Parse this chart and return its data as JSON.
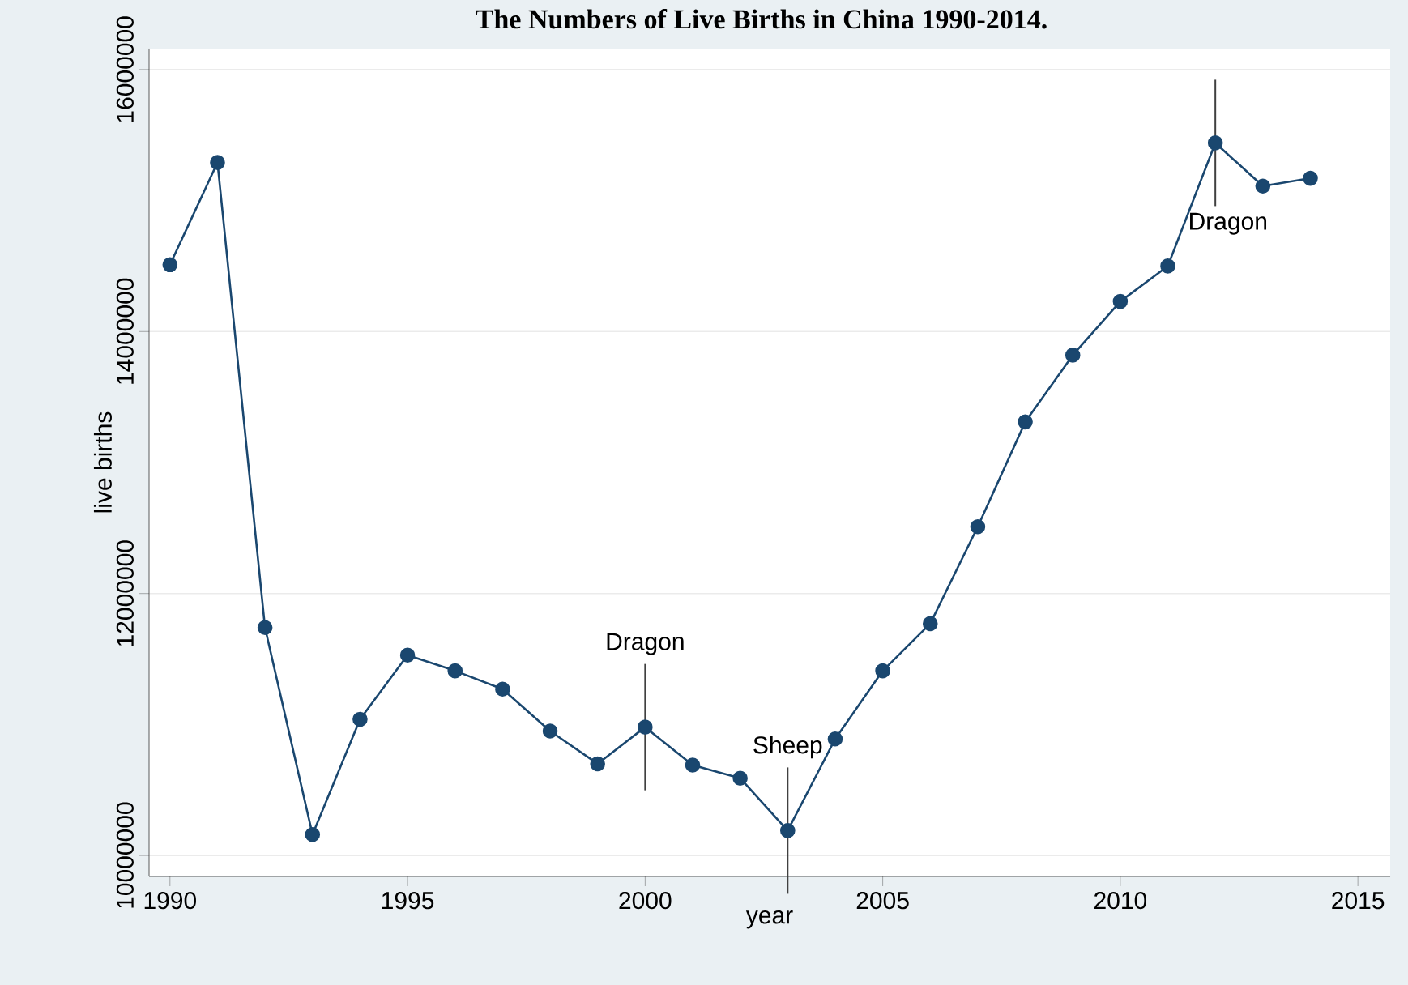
{
  "chart_data": {
    "type": "line",
    "title": "The Numbers of Live Births in China 1990-2014.",
    "xlabel": "year",
    "ylabel": "live births",
    "x": [
      1990,
      1991,
      1992,
      1993,
      1994,
      1995,
      1996,
      1997,
      1998,
      1999,
      2000,
      2001,
      2002,
      2003,
      2004,
      2005,
      2006,
      2007,
      2008,
      2009,
      2010,
      2011,
      2012,
      2013,
      2014
    ],
    "series": [
      {
        "color": "#1a476f",
        "values": [
          14510000,
          15290000,
          11740000,
          10160000,
          11040000,
          11530000,
          11410000,
          11270000,
          10950000,
          10700000,
          10980000,
          10690000,
          10590000,
          10190000,
          10890000,
          11410000,
          11770000,
          12510000,
          13310000,
          13820000,
          14230000,
          14500000,
          15440000,
          15110000,
          15170000
        ]
      }
    ],
    "xlim": [
      1989.56,
      2015.68
    ],
    "ylim": [
      9840000,
      16160000
    ],
    "xticks": [
      1990,
      1995,
      2000,
      2005,
      2010,
      2015
    ],
    "yticks": [
      10000000,
      12000000,
      14000000,
      16000000
    ],
    "grid": "y",
    "marker": "circle",
    "line_style": "solid",
    "annotations": [
      {
        "text": "Dragon",
        "x": 2000,
        "y": 10980000
      },
      {
        "text": "Sheep",
        "x": 2003,
        "y": 10190000
      },
      {
        "text": "Dragon",
        "x": 2012,
        "y": 15440000
      }
    ]
  }
}
